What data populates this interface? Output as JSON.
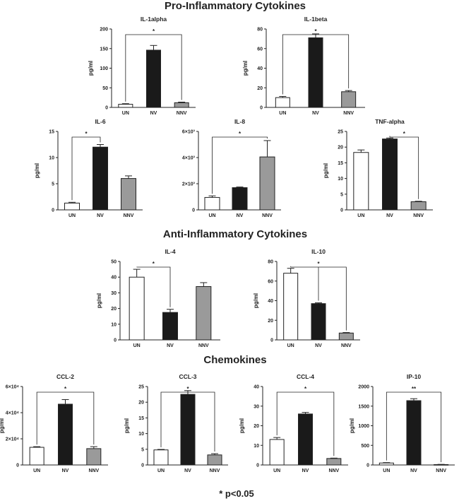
{
  "sections": {
    "pro": "Pro-Inflammatory Cytokines",
    "anti": "Anti-Inflammatory Cytokines",
    "chemo": "Chemokines"
  },
  "footnote": "* p<0.05",
  "colors": {
    "UN": "#ffffff",
    "NV": "#1a1a1a",
    "NNV": "#9a9a9a",
    "stroke": "#222222"
  },
  "chart_data": [
    {
      "id": "il1a",
      "type": "bar",
      "title": "IL-1alpha",
      "ylabel": "pg/ml",
      "categories": [
        "UN",
        "NV",
        "NNV"
      ],
      "values": [
        8,
        146,
        12
      ],
      "errors": [
        1.5,
        12,
        1.5
      ],
      "ylim": [
        0,
        200
      ],
      "ticks": [
        0,
        50,
        100,
        150,
        200
      ],
      "tick_labels": [
        "0",
        "50",
        "100",
        "150",
        "200"
      ],
      "significance": {
        "from": 0,
        "to": 2,
        "label": "*"
      }
    },
    {
      "id": "il1b",
      "type": "bar",
      "title": "IL-1beta",
      "ylabel": "pg/ml",
      "categories": [
        "UN",
        "NV",
        "NNV"
      ],
      "values": [
        10,
        71,
        16
      ],
      "errors": [
        1.2,
        4,
        1.2
      ],
      "ylim": [
        0,
        80
      ],
      "ticks": [
        0,
        20,
        40,
        60,
        80
      ],
      "tick_labels": [
        "0",
        "20",
        "40",
        "60",
        "80"
      ],
      "significance": {
        "from": 0,
        "to": 2,
        "label": "*"
      }
    },
    {
      "id": "il6",
      "type": "bar",
      "title": "IL-6",
      "ylabel": "pg/ml",
      "categories": [
        "UN",
        "NV",
        "NNV"
      ],
      "values": [
        1.3,
        12.0,
        6.0
      ],
      "errors": [
        0.15,
        0.5,
        0.5
      ],
      "ylim": [
        0,
        15
      ],
      "ticks": [
        0,
        5,
        10,
        15
      ],
      "tick_labels": [
        "0",
        "5",
        "10",
        "15"
      ],
      "significance": {
        "from": 0,
        "to": 1,
        "label": "*"
      }
    },
    {
      "id": "il8",
      "type": "bar",
      "title": "IL-8",
      "ylabel": "",
      "categories": [
        "UN",
        "NV",
        "NNV"
      ],
      "values": [
        950,
        1700,
        4050
      ],
      "errors": [
        120,
        50,
        1250
      ],
      "ylim": [
        0,
        6000
      ],
      "ticks": [
        0,
        2000,
        4000,
        6000
      ],
      "tick_labels": [
        "0",
        "2×10³",
        "4×10³",
        "6×10³"
      ],
      "significance": {
        "from": 0,
        "to": 2,
        "label": "*"
      }
    },
    {
      "id": "tnf",
      "type": "bar",
      "title": "TNF-alpha",
      "ylabel": "pg/ml",
      "categories": [
        "UN",
        "NV",
        "NNV"
      ],
      "values": [
        18.3,
        22.6,
        2.6
      ],
      "errors": [
        0.8,
        0.3,
        0.15
      ],
      "ylim": [
        0,
        25
      ],
      "ticks": [
        0,
        5,
        10,
        15,
        20,
        25
      ],
      "tick_labels": [
        "0",
        "5",
        "10",
        "15",
        "20",
        "25"
      ],
      "significance": {
        "from": 1,
        "to": 2,
        "label": "*"
      }
    },
    {
      "id": "il4",
      "type": "bar",
      "title": "IL-4",
      "ylabel": "pg/ml",
      "categories": [
        "UN",
        "NV",
        "NNV"
      ],
      "values": [
        40,
        17.5,
        34
      ],
      "errors": [
        5,
        2,
        2.5
      ],
      "ylim": [
        0,
        50
      ],
      "ticks": [
        0,
        10,
        20,
        30,
        40,
        50
      ],
      "tick_labels": [
        "0",
        "10",
        "20",
        "30",
        "40",
        "50"
      ],
      "significance": {
        "from": 0,
        "to": 1,
        "label": "*"
      }
    },
    {
      "id": "il10",
      "type": "bar",
      "title": "IL-10",
      "ylabel": "pg/ml",
      "categories": [
        "UN",
        "NV",
        "NNV"
      ],
      "values": [
        68,
        37,
        7
      ],
      "errors": [
        5,
        0.8,
        0.5
      ],
      "ylim": [
        0,
        80
      ],
      "ticks": [
        0,
        20,
        40,
        60,
        80
      ],
      "tick_labels": [
        "0",
        "20",
        "40",
        "60",
        "80"
      ],
      "significance": {
        "from": 0,
        "to": 2,
        "label": "*",
        "also_to": 1
      }
    },
    {
      "id": "ccl2",
      "type": "bar",
      "title": "CCL-2",
      "ylabel": "pg/ml",
      "categories": [
        "UN",
        "NV",
        "NNV"
      ],
      "values": [
        13500,
        46500,
        12500
      ],
      "errors": [
        500,
        3500,
        1500
      ],
      "ylim": [
        0,
        60000
      ],
      "ticks": [
        0,
        20000,
        40000,
        60000
      ],
      "tick_labels": [
        "0",
        "2×10⁴",
        "4×10⁴",
        "6×10⁴"
      ],
      "significance": {
        "from": 0,
        "to": 2,
        "label": "*"
      }
    },
    {
      "id": "ccl3",
      "type": "bar",
      "title": "CCL-3",
      "ylabel": "pg/ml",
      "categories": [
        "UN",
        "NV",
        "NNV"
      ],
      "values": [
        4.8,
        22.5,
        3.2
      ],
      "errors": [
        0.15,
        1.2,
        0.4
      ],
      "ylim": [
        0,
        25
      ],
      "ticks": [
        0,
        5,
        10,
        15,
        20,
        25
      ],
      "tick_labels": [
        "0",
        "5",
        "10",
        "15",
        "20",
        "25"
      ],
      "significance": {
        "from": 0,
        "to": 2,
        "label": "*"
      }
    },
    {
      "id": "ccl4",
      "type": "bar",
      "title": "CCL-4",
      "ylabel": "pg/ml",
      "categories": [
        "UN",
        "NV",
        "NNV"
      ],
      "values": [
        13,
        26,
        3.3
      ],
      "errors": [
        1,
        0.8,
        0.2
      ],
      "ylim": [
        0,
        40
      ],
      "ticks": [
        0,
        10,
        20,
        30,
        40
      ],
      "tick_labels": [
        "0",
        "10",
        "20",
        "30",
        "40"
      ],
      "significance": {
        "from": 0,
        "to": 2,
        "label": "*"
      }
    },
    {
      "id": "ip10",
      "type": "bar",
      "title": "IP-10",
      "ylabel": "pg/ml",
      "categories": [
        "UN",
        "NV",
        "NNV"
      ],
      "values": [
        50,
        1640,
        10
      ],
      "errors": [
        10,
        50,
        5
      ],
      "ylim": [
        0,
        2000
      ],
      "ticks": [
        0,
        500,
        1000,
        1500,
        2000
      ],
      "tick_labels": [
        "0",
        "500",
        "1000",
        "1500",
        "2000"
      ],
      "significance": {
        "from": 0,
        "to": 2,
        "label": "**"
      }
    }
  ]
}
